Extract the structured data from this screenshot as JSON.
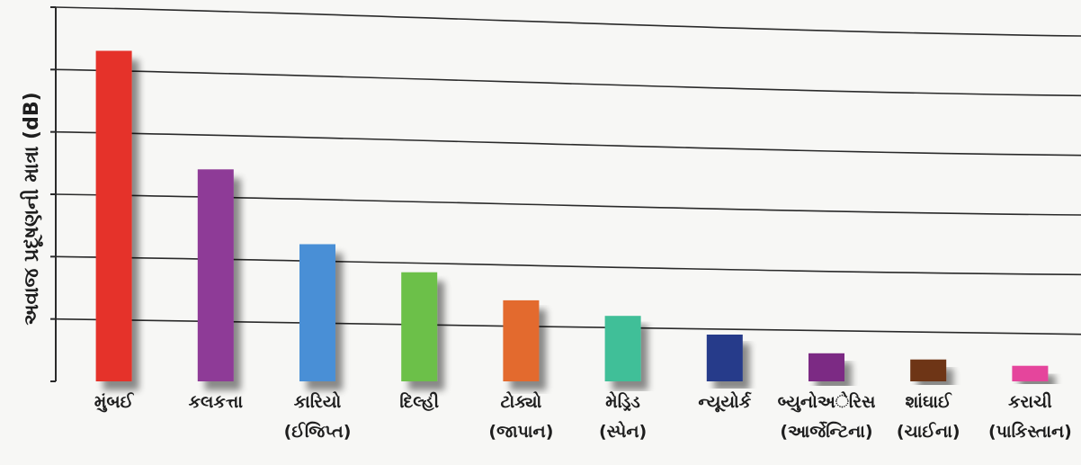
{
  "chart_data": {
    "type": "bar",
    "ylabel": "અવાજ પ્રદૂષણની માત્રા (dB)",
    "xlabel": "",
    "ylim": [
      0,
      6
    ],
    "yticks": [
      0,
      1,
      2,
      3,
      4,
      5,
      6
    ],
    "grid": true,
    "categories": [
      [
        "મુંબઈ"
      ],
      [
        "કલકત્તા"
      ],
      [
        "કારિયો",
        "(ઈજિપ્ત)"
      ],
      [
        "દિલ્હી"
      ],
      [
        "ટોક્યો",
        "(જાપાન)"
      ],
      [
        "મેડ્રિડ",
        "(સ્પેન)"
      ],
      [
        "ન્યૂયોર્ક"
      ],
      [
        "બ્યુનોઅેરિસ",
        "(આર્જેન્ટિના)"
      ],
      [
        "શાંઘાઈ",
        "(ચાઈના)"
      ],
      [
        "કરાચી",
        "(પાકિસ્તાન)"
      ]
    ],
    "values": [
      5.3,
      3.4,
      2.2,
      1.75,
      1.3,
      1.05,
      0.75,
      0.45,
      0.35,
      0.25
    ],
    "colors": [
      "#e5332a",
      "#8e3a97",
      "#4a8fd6",
      "#6cc04a",
      "#e36a2f",
      "#3fbf98",
      "#283a8a",
      "#7b2c84",
      "#6e3417",
      "#e5449c"
    ]
  }
}
